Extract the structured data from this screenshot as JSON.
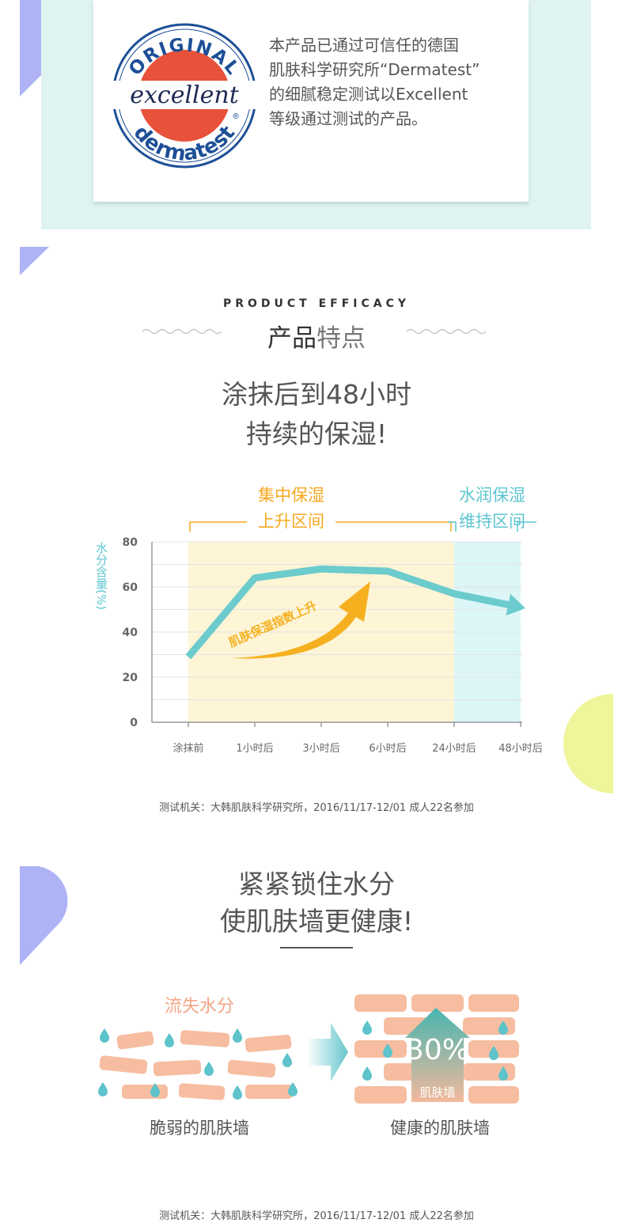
{
  "certificate": {
    "seal_text": {
      "top": "ORIGINAL",
      "middle": "excellent",
      "bottom": "dermatest",
      "reg": "®"
    },
    "description_lines": [
      "本产品已通过可信任的德国",
      "肌肤科学研究所“Dermatest”",
      "的细腻稳定测试以Excellent",
      "等级通过测试的产品。"
    ]
  },
  "section": {
    "eyebrow": "PRODUCT EFFICACY",
    "title_bold": "产品",
    "title_light": "特点"
  },
  "headline1": {
    "line1": "涂抹后到48小时",
    "line2": "持续的保湿!"
  },
  "chart_data": {
    "type": "line",
    "x": [
      "涂抹前",
      "1小时后",
      "3小时后",
      "6小时后",
      "24小时后",
      "48小时后"
    ],
    "series": [
      {
        "values": [
          29,
          64,
          68,
          67,
          57,
          51
        ]
      }
    ],
    "ylabel": "水分含量(%)",
    "ylim": [
      0,
      80
    ],
    "y_ticks": [
      0,
      20,
      40,
      60,
      80
    ],
    "grid": true,
    "phases": [
      {
        "label_line1": "集中保湿",
        "label_line2": "上升区间",
        "from": "涂抹前",
        "to": "24小时后",
        "color": "#fdf5d6",
        "text_color": "#f6a81f"
      },
      {
        "label_line1": "水润保湿",
        "label_line2": "维持区间",
        "from": "24小时后",
        "to": "48小时后",
        "color": "#dcf6f8",
        "text_color": "#5cc6cf"
      }
    ],
    "annotation": "肌肤保湿指数上升",
    "line_color": "#6ccbcc",
    "arrow_color": "#f6b01f"
  },
  "chart_source": "测试机关：大韩肌肤科学研究所，2016/11/17-12/01 成人22名参加",
  "headline2": {
    "line1": "紧紧锁住水分",
    "line2": "使肌肤墙更健康!"
  },
  "walls": {
    "lose_label": "流失水分",
    "weak_label": "脆弱的肌肤墙",
    "healthy_label": "健康的肌肤墙",
    "boost_value": "30%",
    "boost_caption": "肌肤墙"
  },
  "bottom_source": "测试机关：大韩肌肤科学研究所，2016/11/17-12/01 成人22名参加",
  "colors": {
    "brick": "#f6bda1",
    "drop": "#5ec3ca",
    "accent_purple": "#a8adf5",
    "accent_yellow": "#eef59a"
  }
}
